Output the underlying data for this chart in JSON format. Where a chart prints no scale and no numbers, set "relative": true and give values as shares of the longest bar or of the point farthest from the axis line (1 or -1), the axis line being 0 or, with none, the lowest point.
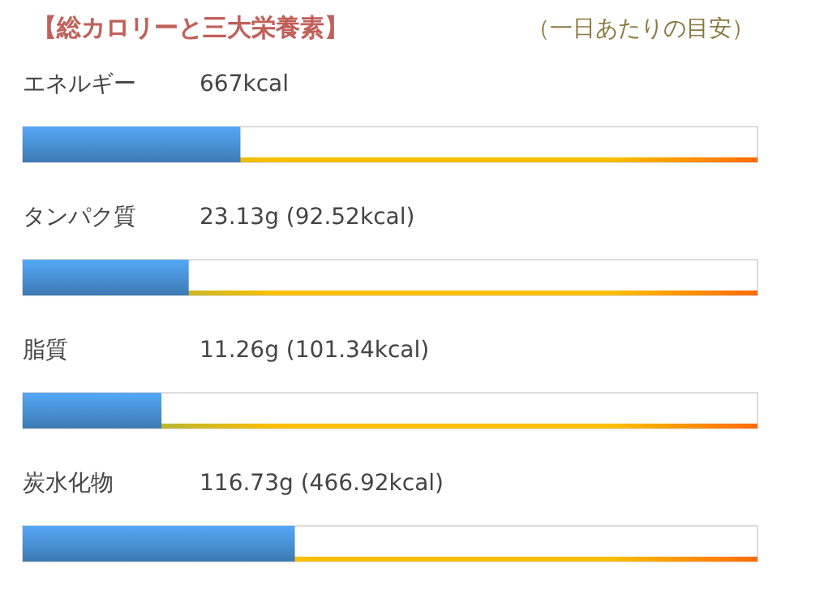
{
  "chart_data": {
    "type": "bar",
    "orientation": "horizontal",
    "relative": true,
    "title": "【総カロリーと三大栄養素】",
    "subtitle": "（一日あたりの目安）",
    "categories": [
      "エネルギー",
      "タンパク質",
      "脂質",
      "炭水化物"
    ],
    "values": [
      0.8,
      0.61,
      0.51,
      1
    ],
    "annotations": [
      "667kcal",
      "23.13g (92.52kcal)",
      "11.26g (101.34kcal)",
      "116.73g (466.92kcal)"
    ],
    "color": "#4a92d6"
  }
}
